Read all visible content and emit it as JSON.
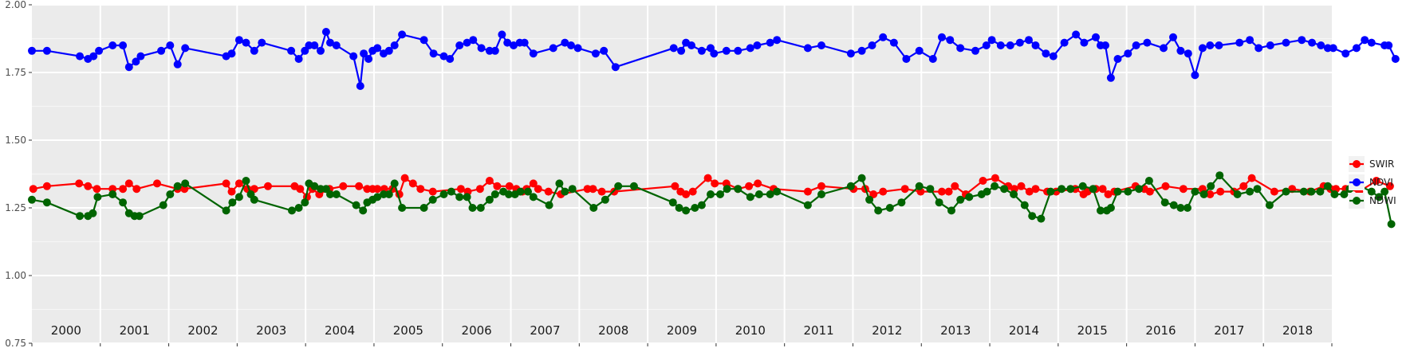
{
  "chart_data": {
    "type": "line",
    "title": "",
    "xlabel": "",
    "ylabel": "",
    "ylim": [
      0.75,
      2.0
    ],
    "yticks": [
      "0.75",
      "1.00",
      "1.25",
      "1.50",
      "1.75",
      "2.00"
    ],
    "xlim": [
      2000.0,
      2019.0
    ],
    "year_labels": [
      "2000",
      "2001",
      "2002",
      "2003",
      "2004",
      "2005",
      "2006",
      "2007",
      "2008",
      "2009",
      "2010",
      "2011",
      "2012",
      "2013",
      "2014",
      "2015",
      "2016",
      "2017",
      "2018"
    ],
    "grid": true,
    "legend_position": "right",
    "series": [
      {
        "name": "SWIR",
        "color": "#ff0000",
        "x": [
          2000.02,
          2000.22,
          2000.69,
          2000.82,
          2000.95,
          2001.18,
          2001.33,
          2001.42,
          2001.53,
          2001.83,
          2002.13,
          2002.23,
          2002.84,
          2002.92,
          2003.03,
          2003.15,
          2003.25,
          2003.45,
          2003.84,
          2003.92,
          2004.02,
          2004.1,
          2004.2,
          2004.35,
          2004.55,
          2004.78,
          2004.9,
          2004.98,
          2005.05,
          2005.15,
          2005.27,
          2005.37,
          2005.45,
          2005.57,
          2005.68,
          2005.86,
          2006.27,
          2006.37,
          2006.55,
          2006.69,
          2006.8,
          2006.98,
          2007.08,
          2007.17,
          2007.23,
          2007.33,
          2007.4,
          2007.55,
          2007.73,
          2008.12,
          2008.2,
          2008.33,
          2008.51,
          2009.4,
          2009.48,
          2009.56,
          2009.66,
          2009.88,
          2009.98,
          2010.15,
          2010.32,
          2010.48,
          2010.61,
          2010.84,
          2011.34,
          2011.54,
          2012.01,
          2012.18,
          2012.3,
          2012.44,
          2012.76,
          2012.99,
          2013.3,
          2013.4,
          2013.49,
          2013.65,
          2013.9,
          2014.08,
          2014.27,
          2014.36,
          2014.46,
          2014.58,
          2014.67,
          2014.84,
          2014.97,
          2015.25,
          2015.37,
          2015.43,
          2015.55,
          2015.65,
          2015.73,
          2015.82,
          2016.13,
          2016.26,
          2016.34,
          2016.57,
          2016.83,
          2017.11,
          2017.22,
          2017.37,
          2017.57,
          2017.71,
          2017.83,
          2018.16,
          2018.42,
          2018.68,
          2018.88,
          2018.98,
          2019.06,
          2019.2,
          2019.4,
          2019.65,
          2019.85
        ],
        "y": [
          1.32,
          1.33,
          1.34,
          1.33,
          1.32,
          1.32,
          1.32,
          1.34,
          1.32,
          1.34,
          1.32,
          1.32,
          1.34,
          1.31,
          1.34,
          1.32,
          1.32,
          1.33,
          1.33,
          1.32,
          1.29,
          1.32,
          1.3,
          1.32,
          1.33,
          1.33,
          1.32,
          1.32,
          1.32,
          1.32,
          1.32,
          1.3,
          1.36,
          1.34,
          1.32,
          1.31,
          1.32,
          1.31,
          1.32,
          1.35,
          1.33,
          1.33,
          1.32,
          1.31,
          1.32,
          1.34,
          1.32,
          1.31,
          1.3,
          1.32,
          1.32,
          1.31,
          1.31,
          1.33,
          1.31,
          1.3,
          1.31,
          1.36,
          1.34,
          1.34,
          1.32,
          1.33,
          1.34,
          1.32,
          1.31,
          1.33,
          1.32,
          1.32,
          1.3,
          1.31,
          1.32,
          1.31,
          1.31,
          1.31,
          1.33,
          1.3,
          1.35,
          1.36,
          1.33,
          1.32,
          1.33,
          1.31,
          1.32,
          1.31,
          1.31,
          1.32,
          1.3,
          1.31,
          1.32,
          1.32,
          1.3,
          1.31,
          1.33,
          1.32,
          1.31,
          1.33,
          1.32,
          1.32,
          1.3,
          1.31,
          1.31,
          1.33,
          1.36,
          1.31,
          1.32,
          1.31,
          1.33,
          1.32,
          1.32,
          1.32,
          1.31,
          1.35,
          1.33
        ]
      },
      {
        "name": "NDVI",
        "color": "#0000ff",
        "x": [
          2000.0,
          2000.22,
          2000.7,
          2000.82,
          2000.9,
          2000.98,
          2001.18,
          2001.33,
          2001.42,
          2001.52,
          2001.59,
          2001.89,
          2002.02,
          2002.13,
          2002.24,
          2002.84,
          2002.92,
          2003.03,
          2003.13,
          2003.25,
          2003.36,
          2003.79,
          2003.9,
          2003.99,
          2004.05,
          2004.13,
          2004.22,
          2004.3,
          2004.36,
          2004.45,
          2004.7,
          2004.8,
          2004.85,
          2004.92,
          2004.98,
          2005.05,
          2005.14,
          2005.22,
          2005.3,
          2005.41,
          2005.73,
          2005.87,
          2006.02,
          2006.11,
          2006.25,
          2006.36,
          2006.45,
          2006.57,
          2006.69,
          2006.77,
          2006.87,
          2006.95,
          2007.04,
          2007.13,
          2007.2,
          2007.33,
          2007.62,
          2007.79,
          2007.88,
          2007.98,
          2008.24,
          2008.36,
          2008.53,
          2009.38,
          2009.49,
          2009.56,
          2009.64,
          2009.79,
          2009.92,
          2009.97,
          2010.15,
          2010.32,
          2010.5,
          2010.6,
          2010.79,
          2010.89,
          2011.34,
          2011.54,
          2011.97,
          2012.13,
          2012.28,
          2012.44,
          2012.6,
          2012.78,
          2012.97,
          2013.17,
          2013.3,
          2013.42,
          2013.57,
          2013.79,
          2013.95,
          2014.03,
          2014.16,
          2014.3,
          2014.44,
          2014.57,
          2014.67,
          2014.82,
          2014.93,
          2015.09,
          2015.26,
          2015.38,
          2015.55,
          2015.62,
          2015.69,
          2015.77,
          2015.87,
          2016.02,
          2016.14,
          2016.3,
          2016.54,
          2016.68,
          2016.79,
          2016.9,
          2017.0,
          2017.11,
          2017.22,
          2017.35,
          2017.65,
          2017.8,
          2017.93,
          2018.1,
          2018.33,
          2018.56,
          2018.71,
          2018.84,
          2018.94,
          2019.02,
          2019.2,
          2019.36,
          2019.48,
          2019.58,
          2019.77,
          2019.83,
          2019.93
        ],
        "y": [
          1.83,
          1.83,
          1.81,
          1.8,
          1.81,
          1.83,
          1.85,
          1.85,
          1.77,
          1.79,
          1.81,
          1.83,
          1.85,
          1.78,
          1.84,
          1.81,
          1.82,
          1.87,
          1.86,
          1.83,
          1.86,
          1.83,
          1.8,
          1.83,
          1.85,
          1.85,
          1.83,
          1.9,
          1.86,
          1.85,
          1.81,
          1.7,
          1.82,
          1.8,
          1.83,
          1.84,
          1.82,
          1.83,
          1.85,
          1.89,
          1.87,
          1.82,
          1.81,
          1.8,
          1.85,
          1.86,
          1.87,
          1.84,
          1.83,
          1.83,
          1.89,
          1.86,
          1.85,
          1.86,
          1.86,
          1.82,
          1.84,
          1.86,
          1.85,
          1.84,
          1.82,
          1.83,
          1.77,
          1.84,
          1.83,
          1.86,
          1.85,
          1.83,
          1.84,
          1.82,
          1.83,
          1.83,
          1.84,
          1.85,
          1.86,
          1.87,
          1.84,
          1.85,
          1.82,
          1.83,
          1.85,
          1.88,
          1.86,
          1.8,
          1.83,
          1.8,
          1.88,
          1.87,
          1.84,
          1.83,
          1.85,
          1.87,
          1.85,
          1.85,
          1.86,
          1.87,
          1.85,
          1.82,
          1.81,
          1.86,
          1.89,
          1.86,
          1.88,
          1.85,
          1.85,
          1.73,
          1.8,
          1.82,
          1.85,
          1.86,
          1.84,
          1.88,
          1.83,
          1.82,
          1.74,
          1.84,
          1.85,
          1.85,
          1.86,
          1.87,
          1.84,
          1.85,
          1.86,
          1.87,
          1.86,
          1.85,
          1.84,
          1.84,
          1.82,
          1.84,
          1.87,
          1.86,
          1.85,
          1.85,
          1.8
        ]
      },
      {
        "name": "NDWI",
        "color": "#006400",
        "x": [
          2000.0,
          2000.22,
          2000.7,
          2000.82,
          2000.89,
          2000.96,
          2001.18,
          2001.33,
          2001.42,
          2001.5,
          2001.57,
          2001.92,
          2002.02,
          2002.13,
          2002.24,
          2002.84,
          2002.93,
          2003.03,
          2003.13,
          2003.2,
          2003.25,
          2003.8,
          2003.9,
          2003.99,
          2004.05,
          2004.13,
          2004.22,
          2004.3,
          2004.36,
          2004.45,
          2004.74,
          2004.84,
          2004.9,
          2004.98,
          2005.05,
          2005.14,
          2005.22,
          2005.3,
          2005.41,
          2005.73,
          2005.86,
          2006.02,
          2006.13,
          2006.25,
          2006.36,
          2006.44,
          2006.56,
          2006.69,
          2006.77,
          2006.89,
          2006.97,
          2007.06,
          2007.14,
          2007.25,
          2007.33,
          2007.56,
          2007.71,
          2007.79,
          2007.9,
          2008.21,
          2008.38,
          2008.57,
          2008.8,
          2009.37,
          2009.46,
          2009.56,
          2009.69,
          2009.79,
          2009.92,
          2010.06,
          2010.16,
          2010.32,
          2010.5,
          2010.63,
          2010.79,
          2010.89,
          2011.34,
          2011.54,
          2011.97,
          2012.13,
          2012.24,
          2012.37,
          2012.54,
          2012.71,
          2012.97,
          2013.13,
          2013.26,
          2013.44,
          2013.57,
          2013.7,
          2013.88,
          2013.96,
          2014.07,
          2014.21,
          2014.35,
          2014.51,
          2014.62,
          2014.75,
          2014.89,
          2015.05,
          2015.18,
          2015.36,
          2015.51,
          2015.62,
          2015.71,
          2015.77,
          2015.87,
          2016.02,
          2016.18,
          2016.33,
          2016.56,
          2016.69,
          2016.79,
          2016.89,
          2017.0,
          2017.13,
          2017.23,
          2017.36,
          2017.62,
          2017.8,
          2017.91,
          2018.09,
          2018.33,
          2018.59,
          2018.7,
          2018.83,
          2018.94,
          2019.04,
          2019.18,
          2019.26,
          2019.42,
          2019.58,
          2019.69,
          2019.77,
          2019.87
        ],
        "y": [
          1.28,
          1.27,
          1.22,
          1.22,
          1.23,
          1.29,
          1.3,
          1.27,
          1.23,
          1.22,
          1.22,
          1.26,
          1.3,
          1.33,
          1.34,
          1.24,
          1.27,
          1.29,
          1.35,
          1.3,
          1.28,
          1.24,
          1.25,
          1.27,
          1.34,
          1.33,
          1.32,
          1.32,
          1.3,
          1.3,
          1.26,
          1.24,
          1.27,
          1.28,
          1.29,
          1.3,
          1.3,
          1.34,
          1.25,
          1.25,
          1.28,
          1.3,
          1.31,
          1.29,
          1.29,
          1.25,
          1.25,
          1.28,
          1.3,
          1.31,
          1.3,
          1.3,
          1.31,
          1.31,
          1.29,
          1.26,
          1.34,
          1.31,
          1.32,
          1.25,
          1.28,
          1.33,
          1.33,
          1.27,
          1.25,
          1.24,
          1.25,
          1.26,
          1.3,
          1.3,
          1.32,
          1.32,
          1.29,
          1.3,
          1.3,
          1.31,
          1.26,
          1.3,
          1.33,
          1.36,
          1.28,
          1.24,
          1.25,
          1.27,
          1.33,
          1.32,
          1.27,
          1.24,
          1.28,
          1.29,
          1.3,
          1.31,
          1.33,
          1.32,
          1.3,
          1.26,
          1.22,
          1.21,
          1.31,
          1.32,
          1.32,
          1.33,
          1.32,
          1.24,
          1.24,
          1.25,
          1.31,
          1.31,
          1.32,
          1.35,
          1.27,
          1.26,
          1.25,
          1.25,
          1.31,
          1.3,
          1.33,
          1.37,
          1.3,
          1.31,
          1.32,
          1.26,
          1.31,
          1.31,
          1.31,
          1.31,
          1.33,
          1.3,
          1.3,
          1.32,
          1.33,
          1.31,
          1.29,
          1.31,
          1.19
        ]
      }
    ]
  }
}
